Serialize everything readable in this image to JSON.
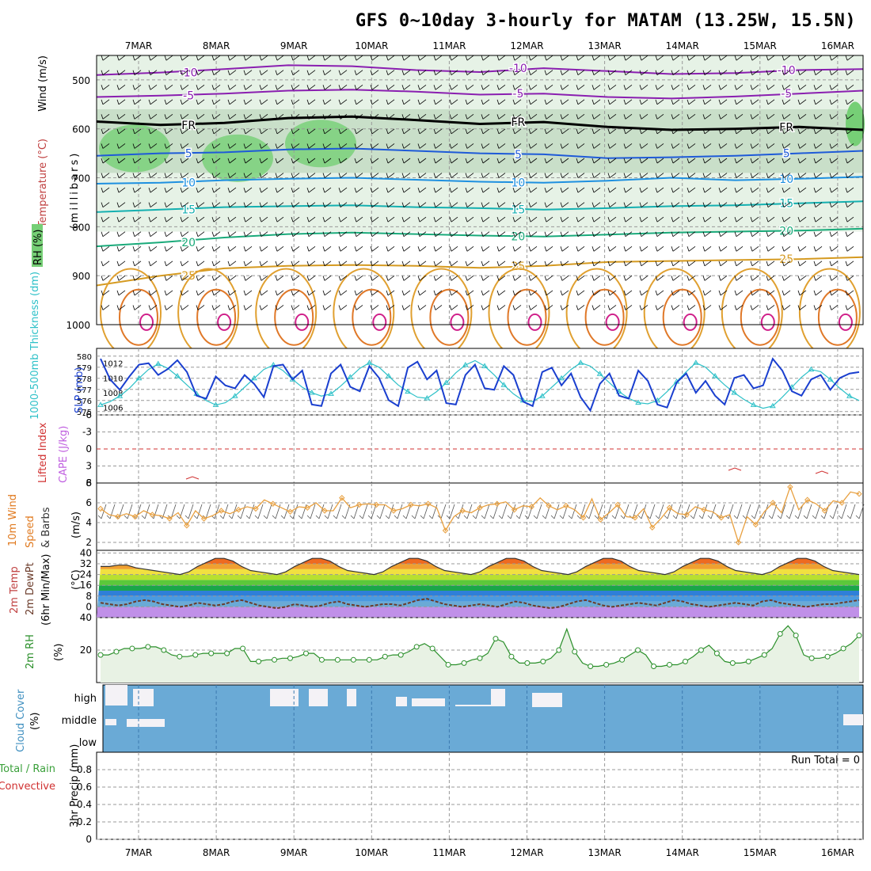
{
  "title": "GFS 0~10day 3-hourly for MATAM (13.25W, 15.5N)",
  "run_total": "Run Total = 0",
  "colors": {
    "frame": "#000000",
    "grid": "#999999",
    "rh_green_light": "#e6f2e6",
    "rh_green_mid": "#c9dfc9",
    "rh_green_dark": "#76cf76",
    "cloud_blue": "#6aaad6",
    "cloud_white": "#f4f2f6",
    "slp_blue": "#1a3fcf",
    "thickness_cyan": "#2ec1c8",
    "wind_speed_orange": "#e8a040",
    "rh2m_green": "#2a8f2a",
    "cape_purple": "#c060e0",
    "lifted_red": "#d03030"
  },
  "chart_data": [
    {
      "id": "upper-air",
      "type": "heatmap",
      "ylabel_wind": "Wind (m/s)",
      "ylabel_temp": "Temperature (°C)",
      "ylabel_rh": "RH (%)",
      "ylabel_p": "(millibars)",
      "x_ticks": [
        "7MAR",
        "8MAR",
        "9MAR",
        "10MAR",
        "11MAR",
        "12MAR",
        "13MAR",
        "14MAR",
        "15MAR",
        "16MAR"
      ],
      "y_ticks": [
        500,
        600,
        700,
        800,
        900,
        1000
      ],
      "ylim": [
        450,
        1000
      ],
      "isotherms": [
        {
          "label": "-10",
          "color": "#8a1fb0",
          "y": [
            490,
            485,
            478,
            470,
            472,
            480,
            484,
            476,
            482,
            488,
            486,
            480,
            478
          ]
        },
        {
          "label": "-5",
          "color": "#8a1fb0",
          "y": [
            535,
            532,
            528,
            522,
            520,
            524,
            530,
            528,
            535,
            538,
            534,
            528,
            522
          ]
        },
        {
          "label": "FR",
          "color": "#000000",
          "y": [
            585,
            592,
            588,
            578,
            575,
            582,
            590,
            586,
            596,
            602,
            600,
            596,
            602
          ]
        },
        {
          "label": "5",
          "color": "#1e5ad8",
          "y": [
            655,
            650,
            648,
            642,
            640,
            645,
            650,
            652,
            660,
            658,
            655,
            650,
            645
          ]
        },
        {
          "label": "10",
          "color": "#1e90e0",
          "y": [
            712,
            710,
            705,
            702,
            700,
            704,
            708,
            710,
            706,
            700,
            705,
            702,
            698
          ]
        },
        {
          "label": "15",
          "color": "#14b0b0",
          "y": [
            770,
            765,
            760,
            758,
            756,
            760,
            762,
            765,
            762,
            758,
            756,
            752,
            748
          ]
        },
        {
          "label": "20",
          "color": "#1aaa7a",
          "y": [
            840,
            832,
            822,
            815,
            812,
            815,
            818,
            820,
            816,
            812,
            810,
            808,
            804
          ]
        },
        {
          "label": "25",
          "color": "#d59a20",
          "y": [
            920,
            900,
            885,
            880,
            878,
            880,
            884,
            880,
            872,
            870,
            868,
            866,
            862
          ]
        }
      ]
    },
    {
      "id": "thickness-slp",
      "type": "line",
      "ylabel_left": "1000-500mb Thickness (dm)",
      "ylabel_right": "SLP (mb)",
      "thickness_ticks": [
        575,
        576,
        577,
        578,
        579,
        580
      ],
      "slp_ticks": [
        1006,
        1008,
        1010,
        1012
      ],
      "thickness": [
        575.6,
        575.9,
        576.4,
        577.1,
        578.0,
        578.8,
        579.3,
        578.9,
        578.2,
        577.4,
        576.6,
        576.0,
        575.6,
        575.8,
        576.4,
        577.2,
        578.0,
        578.8,
        579.2,
        578.7,
        577.9,
        577.2,
        576.7,
        576.4,
        576.6,
        577.3,
        578.1,
        578.9,
        579.4,
        579.0,
        578.2,
        577.4,
        576.8,
        576.3,
        576.2,
        576.8,
        577.6,
        578.5,
        579.2,
        579.6,
        579.1,
        578.3,
        577.4,
        576.6,
        576.0,
        575.9,
        576.4,
        577.2,
        578.0,
        578.8,
        579.4,
        579.1,
        578.4,
        577.6,
        576.8,
        576.2,
        575.8,
        575.7,
        576.0,
        576.8,
        577.7,
        578.6,
        579.4,
        579.0,
        578.2,
        577.4,
        576.7,
        576.1,
        575.6,
        575.3,
        575.5,
        576.3,
        577.2,
        578.1,
        578.8,
        578.6,
        577.9,
        577.1,
        576.4,
        576.0
      ],
      "slp": [
        1012.6,
        1009.8,
        1008.4,
        1010.2,
        1011.8,
        1012.0,
        1010.4,
        1011.2,
        1012.4,
        1010.8,
        1007.6,
        1007.2,
        1010.2,
        1009.0,
        1008.6,
        1010.4,
        1009.2,
        1007.4,
        1011.6,
        1011.8,
        1009.8,
        1011.0,
        1006.4,
        1006.2,
        1010.6,
        1011.8,
        1008.8,
        1008.2,
        1011.6,
        1010.0,
        1007.0,
        1006.2,
        1011.4,
        1012.2,
        1009.8,
        1011.0,
        1006.6,
        1006.4,
        1010.4,
        1011.8,
        1008.6,
        1008.4,
        1011.6,
        1010.4,
        1006.8,
        1006.2,
        1010.8,
        1011.4,
        1009.0,
        1010.6,
        1007.4,
        1005.6,
        1009.2,
        1010.6,
        1007.6,
        1007.2,
        1011.0,
        1009.6,
        1006.4,
        1006.0,
        1009.4,
        1010.6,
        1008.0,
        1009.6,
        1007.6,
        1006.4,
        1010.0,
        1010.4,
        1008.6,
        1009.0,
        1012.6,
        1011.0,
        1008.2,
        1007.6,
        1009.8,
        1010.4,
        1008.4,
        1010.0,
        1010.6,
        1010.8
      ]
    },
    {
      "id": "cape-li",
      "type": "line",
      "ylabel_left": "Lifted Index",
      "ylabel_right": "CAPE (J/kg)",
      "li_ticks": [
        -6,
        -3,
        0,
        3,
        6
      ],
      "cape_ticks": [
        8
      ],
      "li_ticks_labels": [
        "-6",
        "-3",
        "0",
        "3",
        "6"
      ]
    },
    {
      "id": "wind10m",
      "type": "line",
      "ylabel": "10m Wind Speed & Barbs (m/s)",
      "y_ticks": [
        2,
        4,
        6
      ],
      "speed": [
        5.4,
        4.8,
        4.6,
        4.9,
        4.6,
        5.2,
        4.8,
        4.7,
        4.4,
        5.0,
        3.7,
        5.2,
        4.4,
        4.7,
        5.2,
        4.9,
        5.3,
        5.6,
        5.4,
        6.3,
        5.9,
        5.5,
        5.1,
        5.6,
        5.5,
        6.0,
        5.2,
        5.2,
        6.5,
        5.5,
        5.8,
        5.9,
        5.8,
        5.8,
        5.2,
        5.4,
        5.8,
        5.7,
        5.9,
        5.5,
        3.2,
        4.6,
        5.2,
        5.0,
        5.5,
        5.8,
        5.9,
        6.1,
        5.3,
        5.7,
        5.6,
        6.5,
        5.7,
        5.3,
        5.7,
        5.3,
        4.5,
        6.4,
        4.3,
        5.0,
        5.8,
        4.6,
        4.5,
        5.4,
        3.5,
        4.4,
        5.5,
        4.9,
        4.8,
        5.6,
        5.3,
        5.1,
        4.5,
        4.8,
        2.0,
        4.6,
        3.8,
        5.1,
        6.0,
        5.0,
        7.6,
        5.3,
        6.3,
        5.9,
        5.2,
        6.2,
        6.0,
        7.1,
        6.9
      ]
    },
    {
      "id": "temp2m",
      "type": "area",
      "ylabel": "2m Temp 2m DewPt (6hr Min/Max) (°C)",
      "y_ticks": [
        0,
        8,
        16,
        24,
        32,
        40
      ],
      "temp": [
        30,
        30,
        31,
        31,
        29,
        28,
        27,
        26,
        25,
        24,
        26,
        30,
        33,
        36,
        36,
        34,
        30,
        27,
        26,
        25,
        24,
        26,
        30,
        33,
        36,
        36,
        34,
        30,
        27,
        26,
        25,
        24,
        26,
        30,
        33,
        36,
        36,
        34,
        30,
        27,
        26,
        25,
        24,
        26,
        30,
        33,
        36,
        36,
        34,
        30,
        27,
        26,
        25,
        24,
        26,
        30,
        33,
        36,
        36,
        34,
        30,
        27,
        26,
        25,
        24,
        26,
        30,
        33,
        36,
        36,
        34,
        30,
        27,
        26,
        25,
        24,
        26,
        30,
        33,
        36,
        36,
        34,
        30,
        27,
        26,
        25,
        24
      ],
      "dewpt": [
        3,
        2,
        1,
        2,
        4,
        5,
        4,
        2,
        1,
        0,
        1,
        3,
        2,
        1,
        2,
        4,
        5,
        3,
        1,
        0,
        -1,
        0,
        2,
        1,
        0,
        1,
        3,
        4,
        2,
        1,
        0,
        1,
        2,
        2,
        1,
        3,
        5,
        6,
        4,
        2,
        1,
        0,
        1,
        2,
        1,
        0,
        2,
        4,
        3,
        1,
        0,
        -1,
        0,
        2,
        4,
        5,
        3,
        1,
        0,
        1,
        2,
        3,
        2,
        1,
        3,
        5,
        4,
        2,
        1,
        0,
        1,
        2,
        3,
        2,
        1,
        4,
        5,
        3,
        2,
        1,
        0,
        1,
        2,
        2,
        3,
        4,
        5
      ]
    },
    {
      "id": "rh2m",
      "type": "area",
      "ylabel": "2m RH (%)",
      "y_ticks": [
        20,
        40
      ],
      "values": [
        17,
        17,
        19,
        21,
        21,
        21,
        22,
        22,
        20,
        17,
        16,
        16,
        17,
        18,
        18,
        18,
        18,
        21,
        21,
        13,
        13,
        14,
        14,
        15,
        15,
        16,
        18,
        18,
        14,
        14,
        14,
        14,
        14,
        14,
        14,
        14,
        16,
        17,
        17,
        19,
        22,
        24,
        21,
        16,
        11,
        11,
        12,
        14,
        15,
        18,
        27,
        25,
        16,
        12,
        12,
        12,
        13,
        15,
        20,
        33,
        19,
        12,
        10,
        10,
        11,
        12,
        14,
        17,
        20,
        17,
        10,
        10,
        11,
        11,
        13,
        16,
        20,
        23,
        18,
        13,
        12,
        12,
        13,
        15,
        17,
        21,
        30,
        35,
        29,
        17,
        15,
        15,
        16,
        18,
        21,
        24,
        29
      ]
    },
    {
      "id": "cloud",
      "type": "bar",
      "ylabel": "Cloud Cover (%)",
      "levels": [
        "high",
        "middle",
        "low"
      ]
    },
    {
      "id": "precip",
      "type": "bar",
      "ylabel_left_1": "Total / Rain",
      "ylabel_left_2": "Convective",
      "ylabel": "3hr Precip (mm)",
      "y_ticks": [
        "0",
        "0.2",
        "0.4",
        "0.6",
        "0.8"
      ],
      "values": []
    }
  ]
}
